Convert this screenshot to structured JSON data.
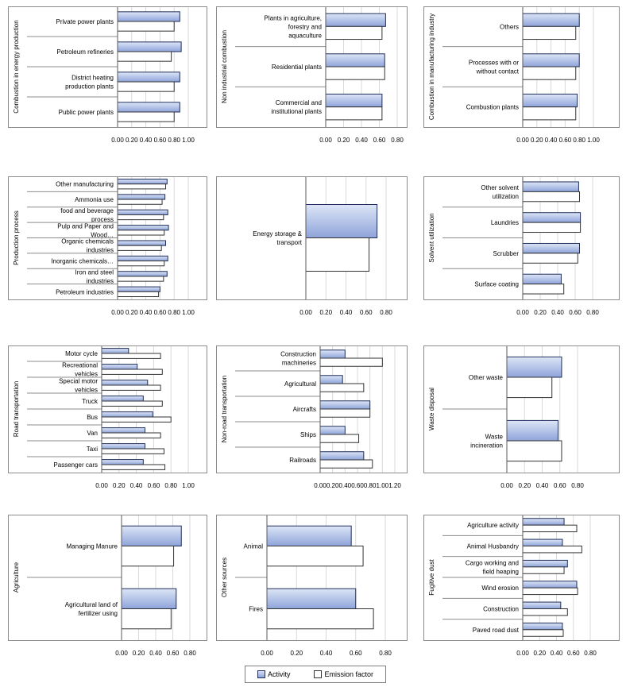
{
  "chart_data": [
    {
      "type": "bar",
      "orientation": "horizontal",
      "ylabel": "Combustion in energy production",
      "categories": [
        "Private power plants",
        "Petroleum refineries",
        "District heating production plants",
        "Public power plants"
      ],
      "series": [
        {
          "name": "Activity",
          "values": [
            0.88,
            0.9,
            0.88,
            0.88
          ]
        },
        {
          "name": "Emission factor",
          "values": [
            0.8,
            0.76,
            0.8,
            0.8
          ]
        }
      ],
      "xlim": [
        0,
        1
      ],
      "ticks": [
        "0.00",
        "0.20",
        "0.40",
        "0.60",
        "0.80",
        "1.00"
      ]
    },
    {
      "type": "bar",
      "orientation": "horizontal",
      "ylabel": "Non industrial combustion",
      "categories": [
        "Plants in agriculture, forestry and aquaculture",
        "Residential plants",
        "Commercial and institutional plants"
      ],
      "series": [
        {
          "name": "Activity",
          "values": [
            0.67,
            0.66,
            0.63
          ]
        },
        {
          "name": "Emission factor",
          "values": [
            0.63,
            0.66,
            0.63
          ]
        }
      ],
      "xlim": [
        0,
        0.8
      ],
      "ticks": [
        "0.00",
        "0.20",
        "0.40",
        "0.60",
        "0.80"
      ]
    },
    {
      "type": "bar",
      "orientation": "horizontal",
      "ylabel": "Combustion in manufacturing industry",
      "categories": [
        "Others",
        "Processes with or without contact",
        "Combustion plants"
      ],
      "series": [
        {
          "name": "Activity",
          "values": [
            0.8,
            0.8,
            0.77
          ]
        },
        {
          "name": "Emission factor",
          "values": [
            0.75,
            0.75,
            0.75
          ]
        }
      ],
      "xlim": [
        0,
        1
      ],
      "ticks": [
        "0.00",
        "0.20",
        "0.40",
        "0.60",
        "0.80",
        "1.00"
      ]
    },
    {
      "type": "bar",
      "orientation": "horizontal",
      "ylabel": "Production process",
      "categories": [
        "Other manufacturing",
        "Ammonia use",
        "food and beverage process",
        "Pulp and Paper and Wood…",
        "Organic chemicals industries",
        "Inorganic chemicals…",
        "Iron and steel industries",
        "Petroleum industries"
      ],
      "series": [
        {
          "name": "Activity",
          "values": [
            0.7,
            0.67,
            0.71,
            0.72,
            0.68,
            0.71,
            0.7,
            0.6
          ]
        },
        {
          "name": "Emission factor",
          "values": [
            0.68,
            0.63,
            0.65,
            0.66,
            0.62,
            0.66,
            0.65,
            0.58
          ]
        }
      ],
      "xlim": [
        0,
        1
      ],
      "ticks": [
        "0.00",
        "0.20",
        "0.40",
        "0.60",
        "0.80",
        "1.00"
      ]
    },
    {
      "type": "bar",
      "orientation": "horizontal",
      "ylabel": "",
      "categories": [
        "Energy storage & transport"
      ],
      "series": [
        {
          "name": "Activity",
          "values": [
            0.71
          ]
        },
        {
          "name": "Emission factor",
          "values": [
            0.63
          ]
        }
      ],
      "xlim": [
        0,
        0.8
      ],
      "ticks": [
        "0.00",
        "0.20",
        "0.40",
        "0.60",
        "0.80"
      ]
    },
    {
      "type": "bar",
      "orientation": "horizontal",
      "ylabel": "Solvent utilization",
      "categories": [
        "Other solvent utilization",
        "Laundries",
        "Scrubber",
        "Surface coating"
      ],
      "series": [
        {
          "name": "Activity",
          "values": [
            0.64,
            0.66,
            0.65,
            0.44
          ]
        },
        {
          "name": "Emission factor",
          "values": [
            0.65,
            0.66,
            0.63,
            0.47
          ]
        }
      ],
      "xlim": [
        0,
        0.8
      ],
      "ticks": [
        "0.00",
        "0.20",
        "0.40",
        "0.60",
        "0.80"
      ]
    },
    {
      "type": "bar",
      "orientation": "horizontal",
      "ylabel": "Road transportation",
      "categories": [
        "Motor cycle",
        "Recreational vehicles",
        "Special motor vehicles",
        "Truck",
        "Bus",
        "Van",
        "Taxi",
        "Passenger cars"
      ],
      "series": [
        {
          "name": "Activity",
          "values": [
            0.31,
            0.41,
            0.53,
            0.48,
            0.59,
            0.5,
            0.5,
            0.48
          ]
        },
        {
          "name": "Emission factor",
          "values": [
            0.68,
            0.7,
            0.68,
            0.7,
            0.8,
            0.68,
            0.72,
            0.73
          ]
        }
      ],
      "xlim": [
        0,
        1
      ],
      "ticks": [
        "0.00",
        "0.20",
        "0.40",
        "0.60",
        "0.80",
        "1.00"
      ]
    },
    {
      "type": "bar",
      "orientation": "horizontal",
      "ylabel": "Non-road transportation",
      "categories": [
        "Construction machineries",
        "Agricultural",
        "Aircrafts",
        "Ships",
        "Railroads"
      ],
      "series": [
        {
          "name": "Activity",
          "values": [
            0.4,
            0.36,
            0.8,
            0.4,
            0.7
          ]
        },
        {
          "name": "Emission factor",
          "values": [
            1.0,
            0.7,
            0.8,
            0.62,
            0.84
          ]
        }
      ],
      "xlim": [
        0,
        1.2
      ],
      "ticks": [
        "0.00",
        "0.20",
        "0.40",
        "0.60",
        "0.80",
        "1.00",
        "1.20"
      ]
    },
    {
      "type": "bar",
      "orientation": "horizontal",
      "ylabel": "Waste disposal",
      "categories": [
        "Other waste",
        "Waste incineration"
      ],
      "series": [
        {
          "name": "Activity",
          "values": [
            0.62,
            0.58
          ]
        },
        {
          "name": "Emission factor",
          "values": [
            0.51,
            0.62
          ]
        }
      ],
      "xlim": [
        0,
        0.8
      ],
      "ticks": [
        "0.00",
        "0.20",
        "0.40",
        "0.60",
        "0.80"
      ]
    },
    {
      "type": "bar",
      "orientation": "horizontal",
      "ylabel": "Agriculture",
      "categories": [
        "Managing Manure",
        "Agricultural land of fertilizer using"
      ],
      "series": [
        {
          "name": "Activity",
          "values": [
            0.7,
            0.64
          ]
        },
        {
          "name": "Emission factor",
          "values": [
            0.61,
            0.58
          ]
        }
      ],
      "xlim": [
        0,
        0.8
      ],
      "ticks": [
        "0.00",
        "0.20",
        "0.40",
        "0.60",
        "0.80"
      ]
    },
    {
      "type": "bar",
      "orientation": "horizontal",
      "ylabel": "Other sources",
      "categories": [
        "Animal",
        "Fires"
      ],
      "series": [
        {
          "name": "Activity",
          "values": [
            0.57,
            0.6
          ]
        },
        {
          "name": "Emission factor",
          "values": [
            0.65,
            0.72
          ]
        }
      ],
      "xlim": [
        0,
        0.8
      ],
      "ticks": [
        "0.00",
        "0.20",
        "0.40",
        "0.60",
        "0.80"
      ]
    },
    {
      "type": "bar",
      "orientation": "horizontal",
      "ylabel": "Fugitive dust",
      "categories": [
        "Agriculture activity",
        "Animal Husbandry",
        "Cargo working and field heaping",
        "Wind erosion",
        "Construction",
        "Paved road dust"
      ],
      "series": [
        {
          "name": "Activity",
          "values": [
            0.49,
            0.47,
            0.53,
            0.64,
            0.45,
            0.47
          ]
        },
        {
          "name": "Emission factor",
          "values": [
            0.64,
            0.7,
            0.49,
            0.65,
            0.53,
            0.48
          ]
        }
      ],
      "xlim": [
        0,
        0.8
      ],
      "ticks": [
        "0.00",
        "0.20",
        "0.40",
        "0.60",
        "0.80"
      ]
    }
  ],
  "legend": {
    "activity": "Activity",
    "emission": "Emission factor"
  }
}
